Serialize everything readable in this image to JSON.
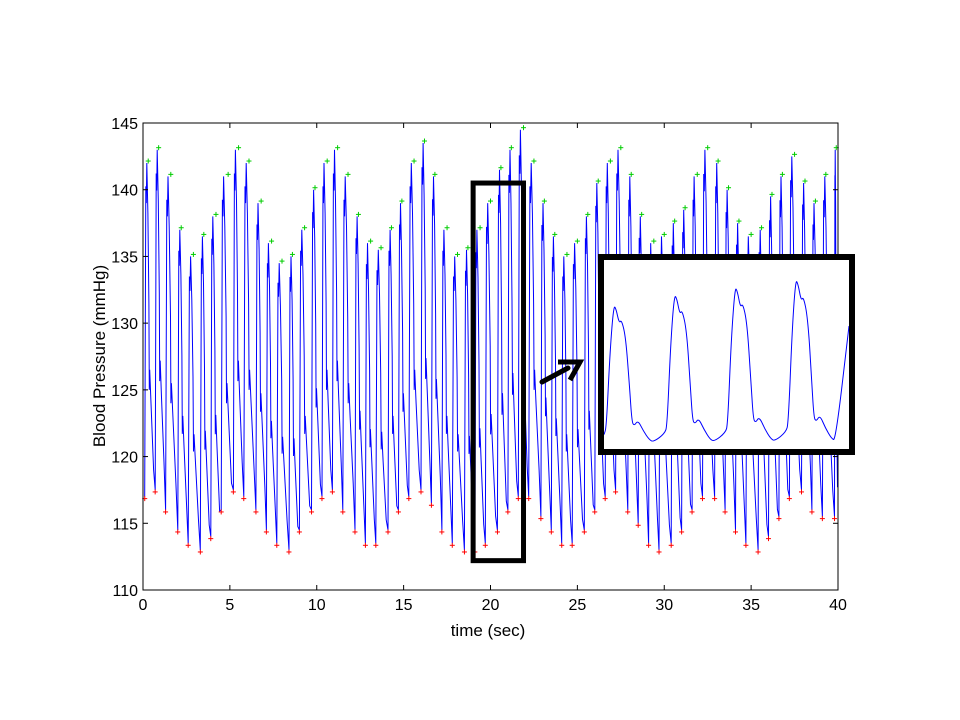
{
  "chart_data": {
    "type": "line",
    "xlabel": "time (sec)",
    "ylabel": "Blood Pressure (mmHg)",
    "xlim": [
      0,
      40
    ],
    "ylim": [
      110,
      145
    ],
    "x_ticks": [
      0,
      5,
      10,
      15,
      20,
      25,
      30,
      35,
      40
    ],
    "y_ticks": [
      110,
      115,
      120,
      125,
      130,
      135,
      140,
      145
    ],
    "grid": false,
    "legend": "none",
    "series_color": "#0000ff",
    "peak_marker_color": "#00cc00",
    "trough_marker_color": "#ff0000",
    "systolic_peaks": {
      "t": [
        0.3,
        0.9,
        1.6,
        2.2,
        2.9,
        3.5,
        4.2,
        4.9,
        5.5,
        6.1,
        6.8,
        7.4,
        8.0,
        8.6,
        9.3,
        9.9,
        10.6,
        11.2,
        11.8,
        12.4,
        13.1,
        13.7,
        14.3,
        14.9,
        15.6,
        16.2,
        16.8,
        17.5,
        18.1,
        18.7,
        19.4,
        20.0,
        20.6,
        21.2,
        21.9,
        22.5,
        23.1,
        23.7,
        24.4,
        25.0,
        25.6,
        26.2,
        26.9,
        27.5,
        28.1,
        28.7,
        29.4,
        30.0,
        30.6,
        31.2,
        31.9,
        32.5,
        33.1,
        33.7,
        34.3,
        35.0,
        35.6,
        36.2,
        36.8,
        37.5,
        38.1,
        38.7,
        39.3,
        39.9
      ],
      "bp": [
        142,
        143,
        141,
        137,
        135,
        136.5,
        138,
        141,
        143,
        142,
        139,
        136,
        134.5,
        135,
        137,
        140,
        142,
        143,
        141,
        138,
        136,
        135.5,
        137,
        139,
        142,
        143.5,
        141,
        137,
        135,
        135.5,
        137,
        139,
        141.5,
        143,
        144.5,
        142,
        139,
        136.5,
        135,
        136,
        138,
        140.5,
        142,
        143,
        141,
        138,
        136,
        136.5,
        137.5,
        138.5,
        141,
        143,
        142,
        140,
        137.5,
        136.5,
        137,
        139.5,
        141,
        142.5,
        140.5,
        139,
        141,
        143
      ]
    },
    "diastolic_troughs": {
      "t": [
        0.1,
        0.7,
        1.3,
        2.0,
        2.6,
        3.3,
        3.9,
        4.5,
        5.2,
        5.8,
        6.5,
        7.1,
        7.7,
        8.4,
        9.0,
        9.7,
        10.3,
        10.9,
        11.5,
        12.2,
        12.8,
        13.4,
        14.1,
        14.7,
        15.3,
        16.0,
        16.6,
        17.2,
        17.8,
        18.5,
        19.1,
        19.7,
        20.4,
        21.0,
        21.6,
        22.2,
        22.9,
        23.5,
        24.1,
        24.7,
        25.4,
        26.0,
        26.6,
        27.2,
        27.9,
        28.5,
        29.1,
        29.7,
        30.4,
        31.0,
        31.6,
        32.2,
        32.9,
        33.5,
        34.1,
        34.7,
        35.4,
        36.0,
        36.6,
        37.2,
        37.9,
        38.5,
        39.1,
        39.8
      ],
      "bp": [
        117,
        117.5,
        116,
        114.5,
        113.5,
        113,
        114,
        116,
        117.5,
        117,
        116,
        114.5,
        113.5,
        113,
        114.5,
        116,
        117,
        117.5,
        116,
        114.5,
        113.5,
        113.5,
        114.5,
        116,
        117,
        117.5,
        116.5,
        114.5,
        113.5,
        113,
        113,
        113.5,
        114.5,
        116,
        117,
        117,
        115.5,
        114.5,
        113.5,
        113.5,
        114.5,
        116,
        117,
        117.5,
        116,
        115,
        113.5,
        113,
        113.5,
        114.5,
        116,
        117,
        117,
        116,
        114.5,
        113.5,
        113,
        114,
        115.5,
        117,
        117.5,
        116,
        115.5,
        115.5
      ]
    },
    "annotations": {
      "highlight_window_sec": [
        19.0,
        21.9
      ],
      "highlight_bp_range": [
        112.2,
        140.5
      ],
      "inset": "zoomed view of highlighted window (4 beats)"
    }
  }
}
